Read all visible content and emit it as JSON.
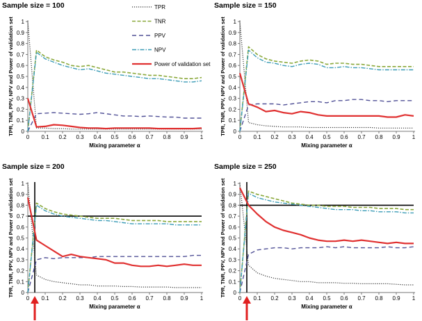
{
  "chart_data": [
    {
      "type": "line",
      "title": "Sample size = 100",
      "xlabel": "Mixing parameter α",
      "ylabel": "TPR, TNR, PPV, NPV and Power of validation set",
      "xlim": [
        0,
        1
      ],
      "ylim": [
        0,
        1
      ],
      "xticks": [
        "0",
        "0.1",
        "0.2",
        "0.3",
        "0.4",
        "0.5",
        "0.6",
        "0.7",
        "0.8",
        "0.9",
        "1"
      ],
      "yticks": [
        "0",
        "0.1",
        "0.2",
        "0.3",
        "0.4",
        "0.5",
        "0.6",
        "0.7",
        "0.8",
        "0.9",
        "1"
      ],
      "x": [
        0,
        0.05,
        0.1,
        0.15,
        0.2,
        0.25,
        0.3,
        0.35,
        0.4,
        0.45,
        0.5,
        0.55,
        0.6,
        0.65,
        0.7,
        0.75,
        0.8,
        0.85,
        0.9,
        0.95,
        1
      ],
      "series": [
        {
          "name": "TPR",
          "values": [
            1.0,
            0.03,
            0.03,
            0.025,
            0.025,
            0.02,
            0.02,
            0.02,
            0.02,
            0.02,
            0.02,
            0.02,
            0.02,
            0.02,
            0.02,
            0.02,
            0.02,
            0.02,
            0.02,
            0.02,
            0.02
          ]
        },
        {
          "name": "TNR",
          "values": [
            0,
            0.74,
            0.68,
            0.65,
            0.63,
            0.6,
            0.59,
            0.6,
            0.58,
            0.56,
            0.54,
            0.54,
            0.53,
            0.52,
            0.51,
            0.51,
            0.5,
            0.49,
            0.48,
            0.48,
            0.49
          ]
        },
        {
          "name": "PPV",
          "values": [
            0,
            0.16,
            0.165,
            0.17,
            0.165,
            0.16,
            0.155,
            0.16,
            0.17,
            0.16,
            0.15,
            0.14,
            0.14,
            0.135,
            0.14,
            0.135,
            0.13,
            0.13,
            0.12,
            0.12,
            0.12
          ]
        },
        {
          "name": "NPV",
          "values": [
            0,
            0.72,
            0.66,
            0.63,
            0.6,
            0.58,
            0.56,
            0.57,
            0.55,
            0.53,
            0.52,
            0.51,
            0.5,
            0.49,
            0.48,
            0.48,
            0.47,
            0.46,
            0.45,
            0.45,
            0.46
          ]
        },
        {
          "name": "Power of validation set",
          "values": [
            0.3,
            0.04,
            0.045,
            0.06,
            0.055,
            0.045,
            0.035,
            0.03,
            0.03,
            0.025,
            0.03,
            0.03,
            0.03,
            0.03,
            0.03,
            0.025,
            0.025,
            0.025,
            0.025,
            0.025,
            0.03
          ]
        }
      ],
      "hline": null,
      "vline": null,
      "arrow": false,
      "legend": "top-center, overlapping plot"
    },
    {
      "type": "line",
      "title": "Sample size = 150",
      "xlabel": "Mixing parameter α",
      "ylabel": "TPR, TNR, PPV, NPV and Power of validation set",
      "xlim": [
        0,
        1
      ],
      "ylim": [
        0,
        1
      ],
      "xticks": [
        "0",
        "0.1",
        "0.2",
        "0.3",
        "0.4",
        "0.5",
        "0.6",
        "0.7",
        "0.8",
        "0.9",
        "1"
      ],
      "yticks": [
        "0",
        "0.1",
        "0.2",
        "0.3",
        "0.4",
        "0.5",
        "0.6",
        "0.7",
        "0.8",
        "0.9",
        "1"
      ],
      "x": [
        0,
        0.05,
        0.1,
        0.15,
        0.2,
        0.25,
        0.3,
        0.35,
        0.4,
        0.45,
        0.5,
        0.55,
        0.6,
        0.65,
        0.7,
        0.75,
        0.8,
        0.85,
        0.9,
        0.95,
        1
      ],
      "series": [
        {
          "name": "TPR",
          "values": [
            1.0,
            0.08,
            0.06,
            0.05,
            0.045,
            0.04,
            0.04,
            0.04,
            0.035,
            0.035,
            0.035,
            0.035,
            0.035,
            0.035,
            0.035,
            0.035,
            0.03,
            0.03,
            0.03,
            0.03,
            0.03
          ]
        },
        {
          "name": "TNR",
          "values": [
            0,
            0.77,
            0.7,
            0.66,
            0.64,
            0.63,
            0.62,
            0.64,
            0.65,
            0.64,
            0.61,
            0.62,
            0.62,
            0.61,
            0.61,
            0.6,
            0.59,
            0.59,
            0.59,
            0.59,
            0.59
          ]
        },
        {
          "name": "PPV",
          "values": [
            0,
            0.24,
            0.25,
            0.25,
            0.25,
            0.24,
            0.25,
            0.26,
            0.27,
            0.27,
            0.26,
            0.28,
            0.28,
            0.29,
            0.29,
            0.28,
            0.28,
            0.27,
            0.28,
            0.28,
            0.28
          ]
        },
        {
          "name": "NPV",
          "values": [
            0,
            0.74,
            0.67,
            0.63,
            0.62,
            0.6,
            0.59,
            0.61,
            0.62,
            0.61,
            0.58,
            0.58,
            0.59,
            0.58,
            0.58,
            0.57,
            0.56,
            0.56,
            0.56,
            0.56,
            0.56
          ]
        },
        {
          "name": "Power of validation set",
          "values": [
            0.53,
            0.25,
            0.22,
            0.18,
            0.19,
            0.17,
            0.16,
            0.18,
            0.17,
            0.15,
            0.14,
            0.14,
            0.14,
            0.14,
            0.14,
            0.14,
            0.14,
            0.13,
            0.13,
            0.15,
            0.14
          ]
        }
      ],
      "hline": null,
      "vline": null,
      "arrow": false
    },
    {
      "type": "line",
      "title": "Sample size = 200",
      "xlabel": "Mixing parameter α",
      "ylabel": "TPR, TNR, PPV, NPV and Power of validation set",
      "xlim": [
        0,
        1
      ],
      "ylim": [
        0,
        1
      ],
      "xticks": [
        "0",
        "0.1",
        "0.2",
        "0.3",
        "0.4",
        "0.5",
        "0.6",
        "0.7",
        "0.8",
        "0.9",
        "1"
      ],
      "yticks": [
        "0",
        "0.1",
        "0.2",
        "0.3",
        "0.4",
        "0.5",
        "0.6",
        "0.7",
        "0.8",
        "0.9",
        "1"
      ],
      "x": [
        0,
        0.05,
        0.1,
        0.15,
        0.2,
        0.25,
        0.3,
        0.35,
        0.4,
        0.45,
        0.5,
        0.55,
        0.6,
        0.65,
        0.7,
        0.75,
        0.8,
        0.85,
        0.9,
        0.95,
        1
      ],
      "series": [
        {
          "name": "TPR",
          "values": [
            1.0,
            0.16,
            0.12,
            0.1,
            0.09,
            0.08,
            0.07,
            0.07,
            0.06,
            0.06,
            0.06,
            0.055,
            0.055,
            0.05,
            0.05,
            0.05,
            0.05,
            0.045,
            0.045,
            0.045,
            0.045
          ]
        },
        {
          "name": "TNR",
          "values": [
            0,
            0.82,
            0.77,
            0.74,
            0.72,
            0.71,
            0.7,
            0.69,
            0.68,
            0.68,
            0.68,
            0.67,
            0.66,
            0.66,
            0.66,
            0.66,
            0.65,
            0.65,
            0.65,
            0.65,
            0.65
          ]
        },
        {
          "name": "PPV",
          "values": [
            0,
            0.3,
            0.32,
            0.31,
            0.32,
            0.32,
            0.32,
            0.32,
            0.33,
            0.33,
            0.33,
            0.33,
            0.33,
            0.33,
            0.33,
            0.33,
            0.33,
            0.33,
            0.33,
            0.34,
            0.34
          ]
        },
        {
          "name": "NPV",
          "values": [
            0,
            0.8,
            0.75,
            0.72,
            0.7,
            0.69,
            0.68,
            0.67,
            0.66,
            0.66,
            0.65,
            0.64,
            0.63,
            0.63,
            0.63,
            0.63,
            0.63,
            0.62,
            0.62,
            0.62,
            0.62
          ]
        },
        {
          "name": "Power of validation set",
          "values": [
            0.87,
            0.48,
            0.43,
            0.38,
            0.33,
            0.35,
            0.33,
            0.32,
            0.31,
            0.3,
            0.27,
            0.27,
            0.25,
            0.24,
            0.24,
            0.25,
            0.24,
            0.25,
            0.26,
            0.25,
            0.25
          ]
        }
      ],
      "hline": 0.7,
      "vline": 0.04,
      "arrow": true
    },
    {
      "type": "line",
      "title": "Sample size = 250",
      "xlabel": "Mixing parameter α",
      "ylabel": "TPR, TNR, PPV, NPV and Power of validation set",
      "xlim": [
        0,
        1
      ],
      "ylim": [
        0,
        1
      ],
      "xticks": [
        "0",
        "0.1",
        "0.2",
        "0.3",
        "0.4",
        "0.5",
        "0.6",
        "0.7",
        "0.8",
        "0.9",
        "1"
      ],
      "yticks": [
        "0",
        "0.1",
        "0.2",
        "0.3",
        "0.4",
        "0.5",
        "0.6",
        "0.7",
        "0.8",
        "0.9",
        "1"
      ],
      "x": [
        0,
        0.05,
        0.1,
        0.15,
        0.2,
        0.25,
        0.3,
        0.35,
        0.4,
        0.45,
        0.5,
        0.55,
        0.6,
        0.65,
        0.7,
        0.75,
        0.8,
        0.85,
        0.9,
        0.95,
        1
      ],
      "series": [
        {
          "name": "TPR",
          "values": [
            1.0,
            0.25,
            0.18,
            0.15,
            0.13,
            0.12,
            0.11,
            0.1,
            0.1,
            0.09,
            0.09,
            0.09,
            0.085,
            0.085,
            0.08,
            0.08,
            0.08,
            0.08,
            0.075,
            0.07,
            0.07
          ]
        },
        {
          "name": "TNR",
          "values": [
            0,
            0.93,
            0.9,
            0.88,
            0.86,
            0.84,
            0.82,
            0.81,
            0.8,
            0.8,
            0.79,
            0.79,
            0.79,
            0.78,
            0.78,
            0.78,
            0.77,
            0.77,
            0.77,
            0.76,
            0.76
          ]
        },
        {
          "name": "PPV",
          "values": [
            0,
            0.35,
            0.39,
            0.4,
            0.41,
            0.41,
            0.4,
            0.41,
            0.41,
            0.41,
            0.42,
            0.41,
            0.42,
            0.41,
            0.41,
            0.41,
            0.41,
            0.42,
            0.41,
            0.41,
            0.42
          ]
        },
        {
          "name": "NPV",
          "values": [
            0,
            0.91,
            0.87,
            0.85,
            0.83,
            0.82,
            0.81,
            0.8,
            0.79,
            0.78,
            0.77,
            0.76,
            0.76,
            0.76,
            0.75,
            0.75,
            0.74,
            0.74,
            0.74,
            0.73,
            0.73
          ]
        },
        {
          "name": "Power of validation set",
          "values": [
            0.96,
            0.8,
            0.72,
            0.65,
            0.6,
            0.57,
            0.55,
            0.53,
            0.5,
            0.48,
            0.47,
            0.47,
            0.48,
            0.47,
            0.48,
            0.47,
            0.46,
            0.45,
            0.46,
            0.45,
            0.45
          ]
        }
      ],
      "hline": 0.8,
      "vline": 0.04,
      "arrow": true
    }
  ],
  "legend": {
    "entries": [
      {
        "name": "TPR",
        "color": "#333333",
        "dash": "1.2,1.8",
        "width": 1.2
      },
      {
        "name": "TNR",
        "color": "#8aa83a",
        "dash": "5,2.5",
        "width": 1.6
      },
      {
        "name": "PPV",
        "color": "#505096",
        "dash": "6,4",
        "width": 1.4
      },
      {
        "name": "NPV",
        "color": "#3a9bb6",
        "dash": "6,2,1.5,2",
        "width": 1.4
      },
      {
        "name": "Power of validation set",
        "color": "#e03030",
        "dash": "",
        "width": 2.2
      }
    ]
  },
  "colors": {
    "reference_line": "#000000",
    "arrow": "#e02020",
    "grid": "#d9d9d9"
  }
}
